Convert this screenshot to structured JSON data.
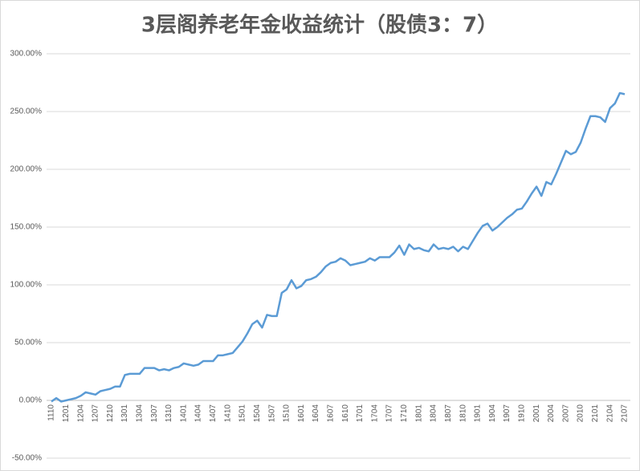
{
  "chart_data": {
    "type": "line",
    "title": "3层阁养老年金收益统计（股债3：7）",
    "categories": [
      "1110",
      null,
      null,
      "1201",
      null,
      null,
      "1204",
      null,
      null,
      "1207",
      null,
      null,
      "1210",
      null,
      null,
      "1301",
      null,
      null,
      "1304",
      null,
      null,
      "1307",
      null,
      null,
      "1310",
      null,
      null,
      "1401",
      null,
      null,
      "1404",
      null,
      null,
      "1407",
      null,
      null,
      "1410",
      null,
      null,
      "1501",
      null,
      null,
      "1504",
      null,
      null,
      "1507",
      null,
      null,
      "1510",
      null,
      null,
      "1601",
      null,
      null,
      "1604",
      null,
      null,
      "1607",
      null,
      null,
      "1610",
      null,
      null,
      "1701",
      null,
      null,
      "1704",
      null,
      null,
      "1707",
      null,
      null,
      "1710",
      null,
      null,
      "1801",
      null,
      null,
      "1804",
      null,
      null,
      "1807",
      null,
      null,
      "1810",
      null,
      null,
      "1901",
      null,
      null,
      "1904",
      null,
      null,
      "1907",
      null,
      null,
      "1910",
      null,
      null,
      "2001",
      null,
      null,
      "2004",
      null,
      null,
      "2007",
      null,
      null,
      "2010",
      null,
      null,
      "2101",
      null,
      null,
      "2104",
      null,
      null,
      "2107"
    ],
    "values": [
      -1,
      2,
      -1,
      0,
      1,
      2,
      4,
      7,
      6,
      5,
      8,
      9,
      10,
      12,
      12,
      22,
      23,
      23,
      23,
      28,
      28,
      28,
      26,
      27,
      26,
      28,
      29,
      32,
      31,
      30,
      31,
      34,
      34,
      34,
      39,
      39,
      40,
      41,
      46,
      51,
      58,
      66,
      69,
      63,
      74,
      73,
      73,
      93,
      96,
      104,
      97,
      99,
      104,
      105,
      107,
      111,
      116,
      119,
      120,
      123,
      121,
      117,
      118,
      119,
      120,
      123,
      121,
      124,
      124,
      124,
      128,
      134,
      126,
      135,
      131,
      132,
      130,
      129,
      135,
      131,
      132,
      131,
      133,
      129,
      133,
      131,
      138,
      145,
      151,
      153,
      147,
      150,
      154,
      158,
      161,
      165,
      166,
      172,
      179,
      185,
      177,
      189,
      187,
      196,
      206,
      216,
      213,
      215,
      223,
      235,
      246,
      246,
      245,
      241,
      253,
      257,
      266,
      265
    ],
    "color": "#5b9bd5",
    "ylim": [
      -50,
      300
    ],
    "yticks": [
      {
        "value": -50,
        "label": "-50.00%"
      },
      {
        "value": 0,
        "label": "0.00%"
      },
      {
        "value": 50,
        "label": "50.00%"
      },
      {
        "value": 100,
        "label": "100.00%"
      },
      {
        "value": 150,
        "label": "150.00%"
      },
      {
        "value": 200,
        "label": "200.00%"
      },
      {
        "value": 250,
        "label": "250.00%"
      },
      {
        "value": 300,
        "label": "300.00%"
      }
    ],
    "grid": true
  }
}
